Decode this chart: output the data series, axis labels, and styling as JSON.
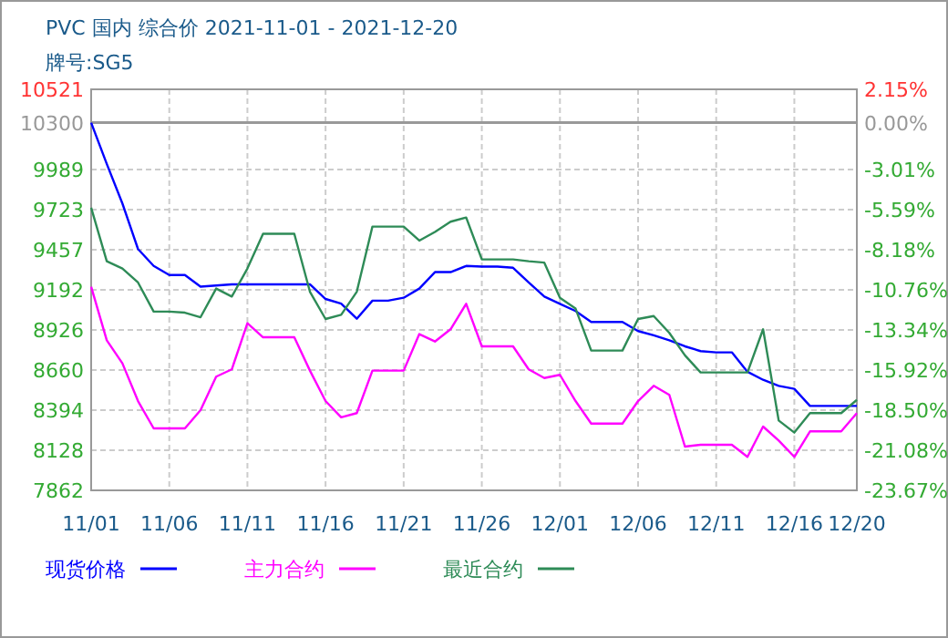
{
  "chart_data": {
    "type": "line",
    "title": "PVC 国内 综合价 2021-11-01 - 2021-12-20",
    "subtitle": "牌号:SG5",
    "x": [
      "2021-11-01",
      "2021-11-02",
      "2021-11-03",
      "2021-11-04",
      "2021-11-05",
      "2021-11-06",
      "2021-11-07",
      "2021-11-08",
      "2021-11-09",
      "2021-11-10",
      "2021-11-11",
      "2021-11-12",
      "2021-11-13",
      "2021-11-14",
      "2021-11-15",
      "2021-11-16",
      "2021-11-17",
      "2021-11-18",
      "2021-11-19",
      "2021-11-20",
      "2021-11-21",
      "2021-11-22",
      "2021-11-23",
      "2021-11-24",
      "2021-11-25",
      "2021-11-26",
      "2021-11-27",
      "2021-11-28",
      "2021-11-29",
      "2021-11-30",
      "2021-12-01",
      "2021-12-02",
      "2021-12-03",
      "2021-12-04",
      "2021-12-05",
      "2021-12-06",
      "2021-12-07",
      "2021-12-08",
      "2021-12-09",
      "2021-12-10",
      "2021-12-11",
      "2021-12-12",
      "2021-12-13",
      "2021-12-14",
      "2021-12-15",
      "2021-12-16",
      "2021-12-17",
      "2021-12-18",
      "2021-12-19",
      "2021-12-20"
    ],
    "series": [
      {
        "name": "现货价格",
        "color": "#0000ff",
        "values": [
          10300,
          10026,
          9764,
          9462,
          9350,
          9290,
          9290,
          9213,
          9220,
          9228,
          9228,
          9228,
          9228,
          9228,
          9228,
          9131,
          9100,
          9000,
          9120,
          9120,
          9139,
          9200,
          9309,
          9309,
          9350,
          9346,
          9346,
          9338,
          9240,
          9147,
          9099,
          9051,
          8978,
          8978,
          8978,
          8918,
          8890,
          8857,
          8817,
          8785,
          8777,
          8777,
          8648,
          8595,
          8555,
          8535,
          8422,
          8422,
          8422,
          8422
        ]
      },
      {
        "name": "主力合约",
        "color": "#ff00ff",
        "values": [
          9212,
          8857,
          8704,
          8454,
          8273,
          8273,
          8273,
          8394,
          8616,
          8664,
          8970,
          8877,
          8877,
          8877,
          8656,
          8454,
          8346,
          8374,
          8656,
          8656,
          8656,
          8898,
          8849,
          8930,
          9099,
          8817,
          8817,
          8817,
          8664,
          8607,
          8628,
          8454,
          8305,
          8305,
          8305,
          8454,
          8555,
          8495,
          8152,
          8164,
          8164,
          8164,
          8084,
          8285,
          8192,
          8084,
          8253,
          8253,
          8253,
          8374
        ]
      },
      {
        "name": "最近合约",
        "color": "#2e8b57",
        "values": [
          9736,
          9381,
          9333,
          9240,
          9047,
          9047,
          9040,
          9010,
          9200,
          9147,
          9333,
          9563,
          9563,
          9563,
          9179,
          8998,
          9026,
          9179,
          9611,
          9611,
          9611,
          9518,
          9575,
          9643,
          9671,
          9393,
          9393,
          9393,
          9381,
          9372,
          9139,
          9067,
          8789,
          8789,
          8789,
          8998,
          9018,
          8906,
          8757,
          8644,
          8644,
          8644,
          8644,
          8930,
          8325,
          8245,
          8374,
          8374,
          8374,
          8462
        ]
      }
    ],
    "xlim": [
      "2021-11-01",
      "2021-12-20"
    ],
    "xticks": [
      {
        "value": "2021-11-01",
        "label": "11/01"
      },
      {
        "value": "2021-11-06",
        "label": "11/06"
      },
      {
        "value": "2021-11-11",
        "label": "11/11"
      },
      {
        "value": "2021-11-16",
        "label": "11/16"
      },
      {
        "value": "2021-11-21",
        "label": "11/21"
      },
      {
        "value": "2021-11-26",
        "label": "11/26"
      },
      {
        "value": "2021-12-01",
        "label": "12/01"
      },
      {
        "value": "2021-12-06",
        "label": "12/06"
      },
      {
        "value": "2021-12-11",
        "label": "12/11"
      },
      {
        "value": "2021-12-16",
        "label": "12/16"
      },
      {
        "value": "2021-12-20",
        "label": "12/20"
      }
    ],
    "ylim": [
      7862,
      10521
    ],
    "yticks": [
      7862,
      8128,
      8394,
      8660,
      8926,
      9192,
      9457,
      9723,
      9989,
      10300,
      10521
    ],
    "y2lim": [
      -23.67,
      2.15
    ],
    "y2ticks": [
      {
        "value": -23.67,
        "label": "-23.67%"
      },
      {
        "value": -21.08,
        "label": "-21.08%"
      },
      {
        "value": -18.5,
        "label": "-18.50%"
      },
      {
        "value": -15.92,
        "label": "-15.92%"
      },
      {
        "value": -13.34,
        "label": "-13.34%"
      },
      {
        "value": -10.76,
        "label": "-10.76%"
      },
      {
        "value": -8.18,
        "label": "-8.18%"
      },
      {
        "value": -5.59,
        "label": "-5.59%"
      },
      {
        "value": -3.01,
        "label": "-3.01%"
      },
      {
        "value": 0,
        "label": "0.00%"
      },
      {
        "value": 2.15,
        "label": "2.15%"
      }
    ],
    "ref_lines": [
      {
        "axis": "y",
        "value": 10300,
        "color": "#999999"
      }
    ],
    "grid": true,
    "legend": "bottom"
  }
}
